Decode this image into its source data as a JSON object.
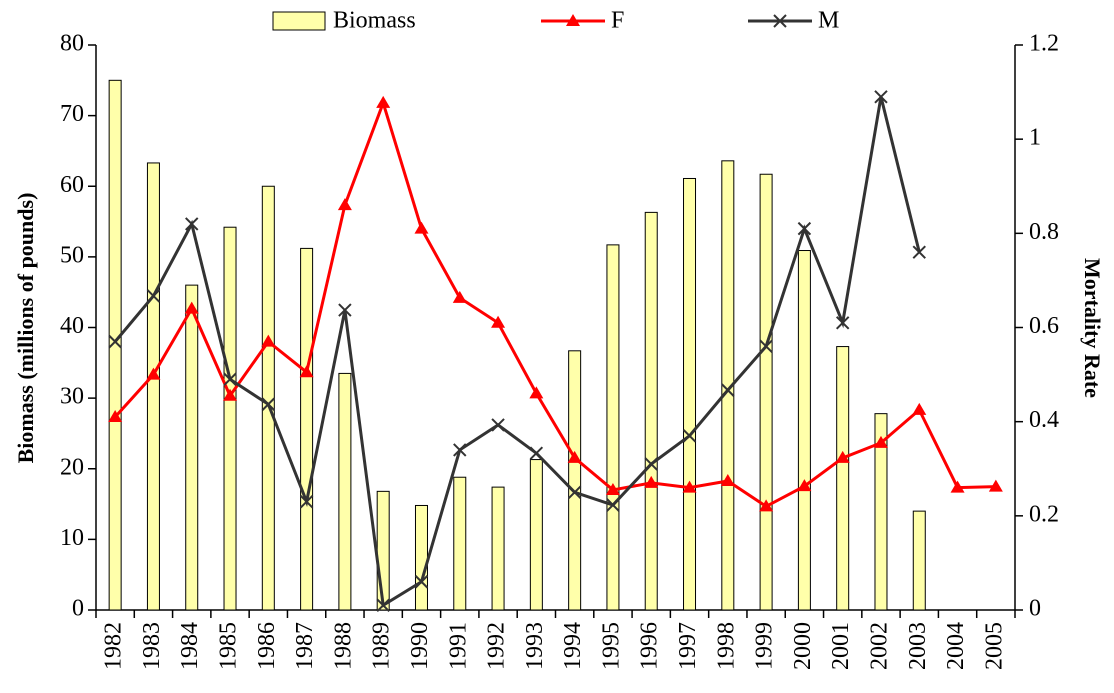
{
  "chart_data": {
    "type": "combo",
    "categories": [
      "1982",
      "1983",
      "1984",
      "1985",
      "1986",
      "1987",
      "1988",
      "1989",
      "1990",
      "1991",
      "1992",
      "1993",
      "1994",
      "1995",
      "1996",
      "1997",
      "1998",
      "1999",
      "2000",
      "2001",
      "2002",
      "2003",
      "2004",
      "2005"
    ],
    "y_label": "Biomass (millions of pounds)",
    "y2_label": "Mortality Rate",
    "ylim": [
      0,
      80
    ],
    "yticks": [
      0,
      10,
      20,
      30,
      40,
      50,
      60,
      70,
      80
    ],
    "y2lim": [
      0,
      1.2
    ],
    "y2ticks": [
      0,
      0.2,
      0.4,
      0.6,
      0.8,
      1,
      1.2
    ],
    "series": [
      {
        "name": "Biomass",
        "type": "bar",
        "color": "#ffffaa",
        "axis": "y",
        "values": [
          75,
          63.3,
          46,
          54.2,
          60,
          51.2,
          33.5,
          16.8,
          14.8,
          18.8,
          17.4,
          21.3,
          36.7,
          51.7,
          56.3,
          61.1,
          63.6,
          61.7,
          50.9,
          37.3,
          27.8,
          14,
          null,
          null
        ]
      },
      {
        "name": "F",
        "type": "line",
        "marker": "triangle",
        "color": "#ff0000",
        "axis": "y2",
        "values": [
          0.41,
          0.5,
          0.64,
          0.455,
          0.57,
          0.505,
          0.86,
          1.077,
          0.81,
          0.663,
          0.61,
          0.46,
          0.323,
          0.255,
          0.27,
          0.26,
          0.274,
          0.22,
          0.263,
          0.323,
          0.355,
          0.425,
          0.26,
          0.262
        ]
      },
      {
        "name": "M",
        "type": "line",
        "marker": "x",
        "color": "#333333",
        "axis": "y2",
        "values": [
          0.57,
          0.667,
          0.82,
          0.49,
          0.437,
          0.23,
          0.637,
          0.01,
          0.06,
          0.34,
          0.393,
          0.333,
          0.25,
          0.223,
          0.31,
          0.37,
          0.467,
          0.56,
          0.81,
          0.61,
          1.09,
          0.76,
          null,
          null
        ]
      }
    ]
  }
}
